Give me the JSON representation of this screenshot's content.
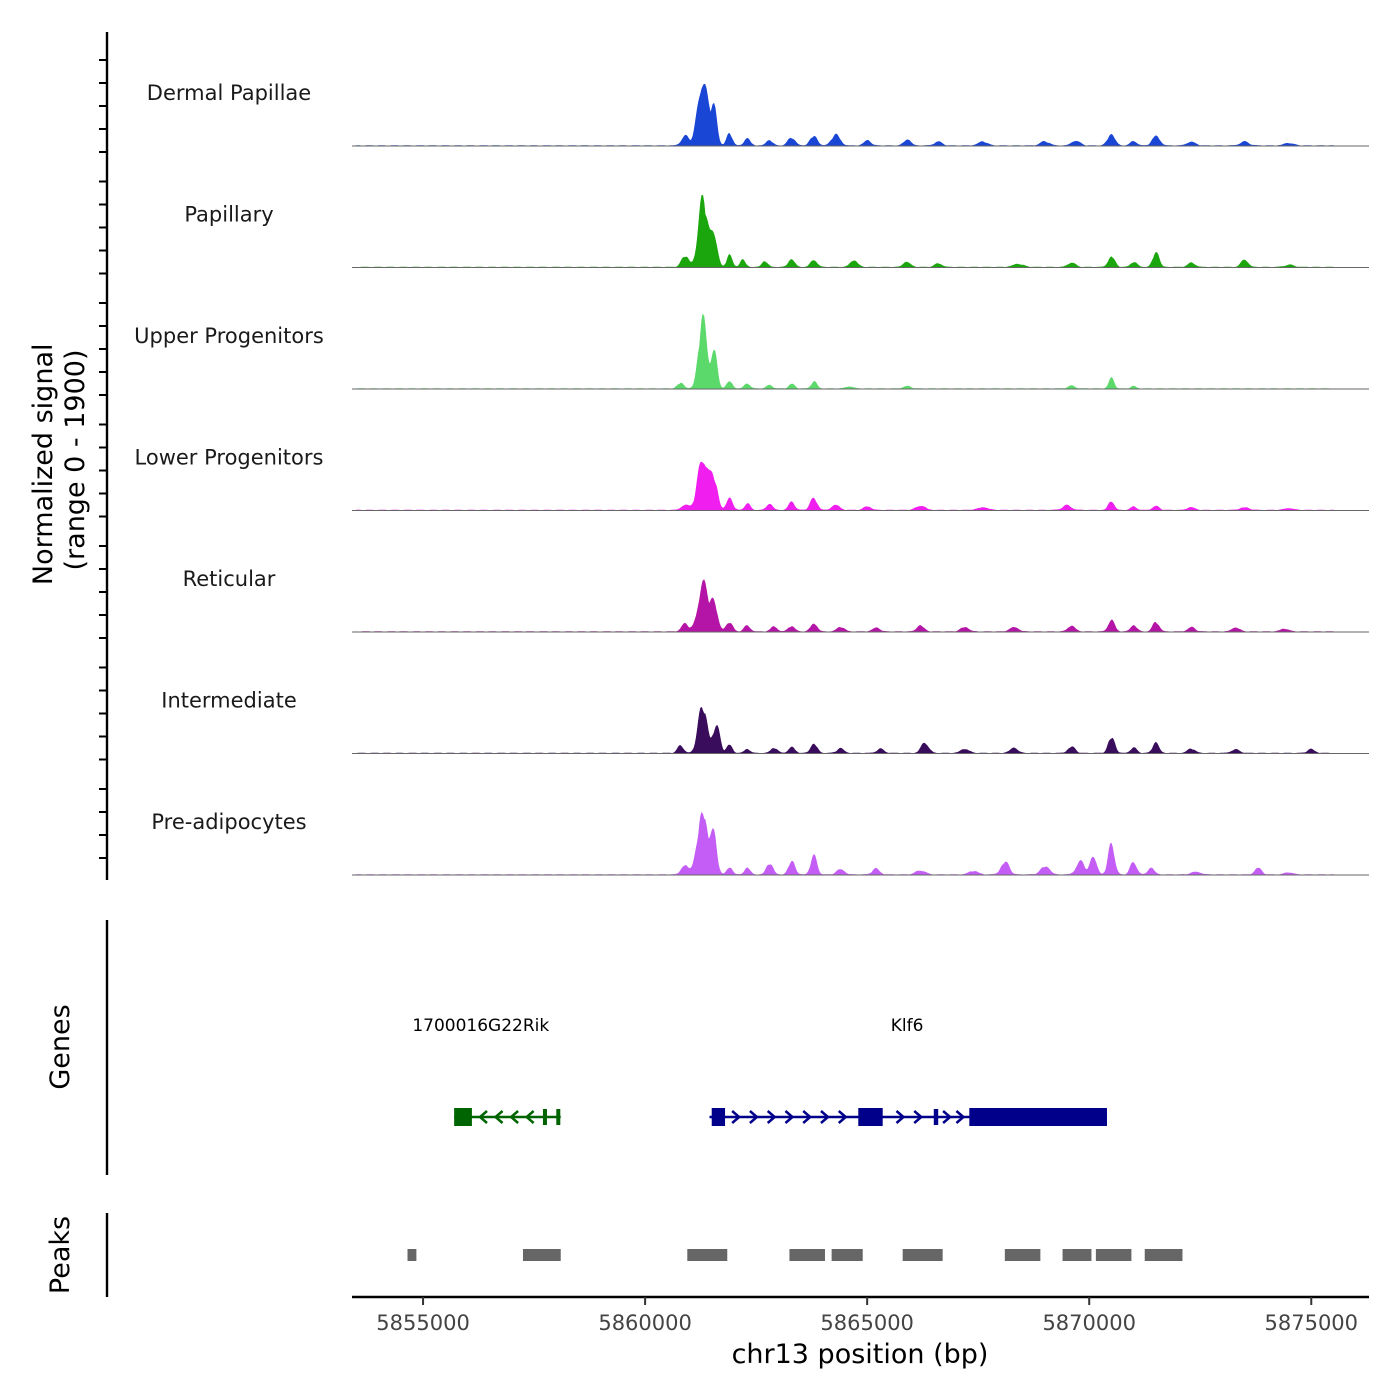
{
  "chart_data": {
    "type": "area",
    "subtype": "genome-coverage-tracks",
    "ylabel": "Normalized signal",
    "ylabel_range": "(range 0 - 1900)",
    "ylim": [
      0,
      1900
    ],
    "xlabel": "chr13 position (bp)",
    "xlim": [
      5853400,
      5876300
    ],
    "xticks": [
      5855000,
      5860000,
      5865000,
      5870000,
      5875000
    ],
    "xtick_labels": [
      "5855000",
      "5860000",
      "5865000",
      "5870000",
      "5875000"
    ],
    "signal_extent": [
      5853500,
      5875500
    ],
    "series": [
      {
        "name": "Dermal Papillae",
        "color": "#1a46d6",
        "peaks": [
          [
            5860900,
            280,
            80
          ],
          [
            5861300,
            1850,
            110
          ],
          [
            5861550,
            900,
            70
          ],
          [
            5861900,
            340,
            60
          ],
          [
            5862300,
            180,
            70
          ],
          [
            5862800,
            140,
            70
          ],
          [
            5863300,
            210,
            80
          ],
          [
            5863800,
            260,
            80
          ],
          [
            5864300,
            320,
            90
          ],
          [
            5865000,
            130,
            80
          ],
          [
            5865900,
            150,
            80
          ],
          [
            5866600,
            120,
            80
          ],
          [
            5867600,
            110,
            100
          ],
          [
            5869000,
            110,
            100
          ],
          [
            5869700,
            140,
            90
          ],
          [
            5870500,
            320,
            80
          ],
          [
            5871000,
            130,
            70
          ],
          [
            5871500,
            290,
            80
          ],
          [
            5872300,
            110,
            90
          ],
          [
            5873500,
            100,
            100
          ],
          [
            5874500,
            70,
            100
          ]
        ]
      },
      {
        "name": "Papillary",
        "color": "#1aa60c",
        "peaks": [
          [
            5860900,
            300,
            80
          ],
          [
            5861300,
            1870,
            100
          ],
          [
            5861550,
            950,
            70
          ],
          [
            5861900,
            320,
            60
          ],
          [
            5862200,
            190,
            60
          ],
          [
            5862700,
            160,
            60
          ],
          [
            5863300,
            220,
            70
          ],
          [
            5863800,
            210,
            70
          ],
          [
            5864700,
            200,
            80
          ],
          [
            5865900,
            140,
            80
          ],
          [
            5866600,
            100,
            80
          ],
          [
            5868400,
            80,
            120
          ],
          [
            5869600,
            130,
            80
          ],
          [
            5870500,
            310,
            70
          ],
          [
            5871000,
            140,
            70
          ],
          [
            5871500,
            380,
            70
          ],
          [
            5872300,
            120,
            80
          ],
          [
            5873500,
            230,
            70
          ],
          [
            5874500,
            60,
            100
          ]
        ]
      },
      {
        "name": "Upper Progenitors",
        "color": "#5cd96b",
        "peaks": [
          [
            5860800,
            150,
            70
          ],
          [
            5861300,
            1880,
            90
          ],
          [
            5861550,
            950,
            70
          ],
          [
            5861900,
            220,
            60
          ],
          [
            5862300,
            150,
            60
          ],
          [
            5862800,
            110,
            60
          ],
          [
            5863300,
            140,
            60
          ],
          [
            5863800,
            190,
            60
          ],
          [
            5864600,
            60,
            80
          ],
          [
            5865900,
            70,
            80
          ],
          [
            5869600,
            70,
            80
          ],
          [
            5870500,
            260,
            60
          ],
          [
            5871000,
            60,
            60
          ]
        ]
      },
      {
        "name": "Lower Progenitors",
        "color": "#f01eee",
        "peaks": [
          [
            5860900,
            150,
            80
          ],
          [
            5861300,
            1500,
            110
          ],
          [
            5861550,
            800,
            80
          ],
          [
            5861900,
            300,
            70
          ],
          [
            5862300,
            180,
            60
          ],
          [
            5862800,
            150,
            70
          ],
          [
            5863300,
            200,
            70
          ],
          [
            5863800,
            300,
            80
          ],
          [
            5864300,
            150,
            80
          ],
          [
            5865000,
            100,
            80
          ],
          [
            5866200,
            120,
            100
          ],
          [
            5867600,
            70,
            120
          ],
          [
            5869500,
            120,
            100
          ],
          [
            5870500,
            260,
            60
          ],
          [
            5871000,
            110,
            60
          ],
          [
            5871500,
            120,
            70
          ],
          [
            5872300,
            80,
            80
          ],
          [
            5873500,
            70,
            100
          ],
          [
            5874500,
            50,
            100
          ]
        ]
      },
      {
        "name": "Reticular",
        "color": "#b515a6",
        "peaks": [
          [
            5860900,
            200,
            80
          ],
          [
            5861300,
            1250,
            110
          ],
          [
            5861550,
            800,
            80
          ],
          [
            5861900,
            260,
            70
          ],
          [
            5862300,
            150,
            70
          ],
          [
            5862900,
            150,
            70
          ],
          [
            5863300,
            160,
            70
          ],
          [
            5863800,
            240,
            70
          ],
          [
            5864400,
            130,
            80
          ],
          [
            5865200,
            110,
            80
          ],
          [
            5866200,
            160,
            80
          ],
          [
            5867200,
            120,
            90
          ],
          [
            5868300,
            130,
            90
          ],
          [
            5869600,
            170,
            80
          ],
          [
            5870500,
            330,
            70
          ],
          [
            5871000,
            170,
            70
          ],
          [
            5871500,
            260,
            70
          ],
          [
            5872300,
            120,
            80
          ],
          [
            5873300,
            100,
            90
          ],
          [
            5874400,
            80,
            90
          ]
        ]
      },
      {
        "name": "Intermediate",
        "color": "#3a0d5c",
        "peaks": [
          [
            5860800,
            190,
            70
          ],
          [
            5861300,
            1260,
            100
          ],
          [
            5861600,
            700,
            80
          ],
          [
            5861900,
            250,
            60
          ],
          [
            5862300,
            120,
            60
          ],
          [
            5862900,
            150,
            70
          ],
          [
            5863300,
            170,
            70
          ],
          [
            5863800,
            260,
            70
          ],
          [
            5864400,
            120,
            80
          ],
          [
            5865300,
            110,
            80
          ],
          [
            5866300,
            300,
            80
          ],
          [
            5867200,
            120,
            90
          ],
          [
            5868300,
            130,
            90
          ],
          [
            5869600,
            170,
            80
          ],
          [
            5870500,
            430,
            70
          ],
          [
            5871000,
            140,
            70
          ],
          [
            5871500,
            270,
            70
          ],
          [
            5872300,
            120,
            80
          ],
          [
            5873300,
            100,
            90
          ],
          [
            5875000,
            100,
            80
          ]
        ]
      },
      {
        "name": "Pre-adipocytes",
        "color": "#c45df5",
        "peaks": [
          [
            5860900,
            280,
            80
          ],
          [
            5861300,
            1830,
            110
          ],
          [
            5861550,
            900,
            70
          ],
          [
            5861900,
            200,
            60
          ],
          [
            5862300,
            200,
            60
          ],
          [
            5862800,
            310,
            70
          ],
          [
            5863300,
            350,
            70
          ],
          [
            5863800,
            480,
            70
          ],
          [
            5864400,
            160,
            80
          ],
          [
            5865200,
            160,
            80
          ],
          [
            5866200,
            120,
            100
          ],
          [
            5867400,
            100,
            100
          ],
          [
            5868100,
            340,
            90
          ],
          [
            5869000,
            220,
            100
          ],
          [
            5869800,
            380,
            90
          ],
          [
            5870100,
            500,
            70
          ],
          [
            5870500,
            800,
            70
          ],
          [
            5871000,
            350,
            70
          ],
          [
            5871400,
            180,
            70
          ],
          [
            5872400,
            80,
            100
          ],
          [
            5873800,
            200,
            70
          ],
          [
            5874500,
            60,
            90
          ]
        ]
      }
    ],
    "genes_panel": {
      "ylabel": "Genes",
      "genes": [
        {
          "name": "1700016G22Rik",
          "label_pos": 5856300,
          "strand": "-",
          "start": 5855700,
          "end": 5858100,
          "color": "#006400",
          "exons": [
            [
              5855700,
              5856100
            ],
            [
              5857700,
              5857750
            ],
            [
              5858000,
              5858050
            ]
          ],
          "arrows": [
            5856350,
            5856700,
            5857050,
            5857400
          ]
        },
        {
          "name": "Klf6",
          "label_pos": 5865900,
          "strand": "+",
          "start": 5861450,
          "end": 5870400,
          "color": "#00008b",
          "exons": [
            [
              5861500,
              5861800
            ],
            [
              5864800,
              5865350
            ],
            [
              5866500,
              5866600
            ],
            [
              5867300,
              5870400
            ]
          ],
          "arrows": [
            5862050,
            5862450,
            5862850,
            5863250,
            5863650,
            5864050,
            5864450,
            5865750,
            5866150,
            5866800,
            5867100
          ]
        }
      ]
    },
    "peaks_panel": {
      "ylabel": "Peaks",
      "color": "#666666",
      "regions": [
        [
          5854650,
          5854850
        ],
        [
          5857250,
          5858100
        ],
        [
          5860950,
          5861850
        ],
        [
          5863250,
          5864050
        ],
        [
          5864200,
          5864900
        ],
        [
          5865800,
          5866700
        ],
        [
          5868100,
          5868900
        ],
        [
          5869400,
          5870050
        ],
        [
          5870150,
          5870950
        ],
        [
          5871250,
          5872100
        ]
      ]
    }
  }
}
